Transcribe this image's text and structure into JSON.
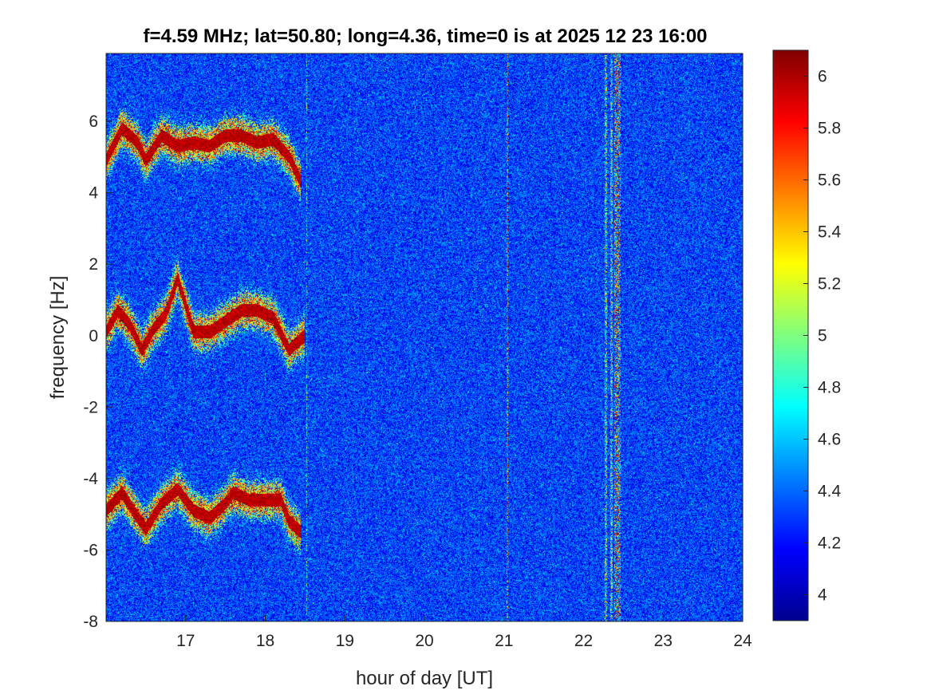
{
  "chart_data": {
    "type": "heatmap",
    "title": "f=4.59 MHz;  lat=50.80; long=4.36, time=0 is at 2025 12 23 16:00",
    "xlabel": "hour of day [UT]",
    "ylabel": "frequency [Hz]",
    "xlim": [
      16.0,
      24.0
    ],
    "ylim": [
      -8.0,
      7.9
    ],
    "x_ticks": [
      17,
      18,
      19,
      20,
      21,
      22,
      23,
      24
    ],
    "y_ticks": [
      -8,
      -6,
      -4,
      -2,
      0,
      2,
      4,
      6
    ],
    "colorbar": {
      "colormap": "jet",
      "clim": [
        3.9,
        6.1
      ],
      "ticks": [
        4,
        4.2,
        4.4,
        4.6,
        4.8,
        5,
        5.2,
        5.4,
        5.6,
        5.8,
        6
      ]
    },
    "background_level": 4.3,
    "doppler_traces": [
      {
        "x": [
          16.0,
          16.2,
          16.4,
          16.5,
          16.7,
          16.9,
          17.1,
          17.3,
          17.5,
          17.7,
          17.9,
          18.1,
          18.3,
          18.45
        ],
        "y": [
          4.9,
          5.8,
          5.4,
          4.9,
          5.6,
          5.3,
          5.4,
          5.3,
          5.6,
          5.6,
          5.4,
          5.5,
          5.0,
          4.3
        ],
        "level": 6.1
      },
      {
        "x": [
          16.0,
          16.15,
          16.3,
          16.45,
          16.6,
          16.75,
          16.9,
          17.1,
          17.3,
          17.5,
          17.7,
          17.9,
          18.1,
          18.3,
          18.5
        ],
        "y": [
          0.1,
          0.7,
          0.3,
          -0.4,
          0.2,
          0.6,
          1.6,
          0.1,
          0.1,
          0.4,
          0.7,
          0.7,
          0.5,
          -0.4,
          0.0
        ],
        "level": 6.1
      },
      {
        "x": [
          16.0,
          16.2,
          16.4,
          16.5,
          16.7,
          16.9,
          17.1,
          17.3,
          17.5,
          17.6,
          17.8,
          18.0,
          18.2,
          18.3,
          18.45
        ],
        "y": [
          -4.9,
          -4.4,
          -5.1,
          -5.4,
          -4.7,
          -4.3,
          -4.9,
          -5.1,
          -4.7,
          -4.4,
          -4.6,
          -4.6,
          -4.6,
          -5.2,
          -5.5
        ],
        "level": 6.1
      }
    ],
    "vertical_features": [
      {
        "x": 21.04,
        "width": 0.02,
        "level": 5.7
      },
      {
        "x": 22.28,
        "width": 0.03,
        "level": 5.0
      },
      {
        "x": 22.35,
        "width": 0.03,
        "level": 5.0
      },
      {
        "x": 22.43,
        "width": 0.08,
        "level": 5.6
      },
      {
        "x": 18.52,
        "width": 0.01,
        "level": 4.8
      }
    ]
  }
}
